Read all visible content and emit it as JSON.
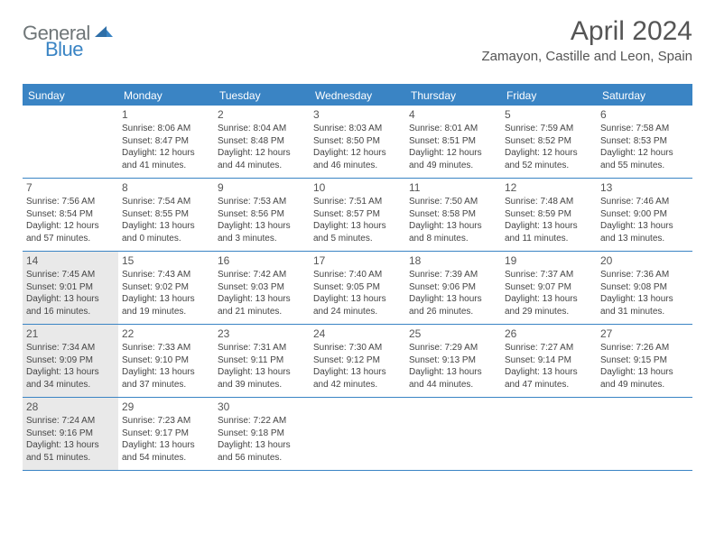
{
  "logo": {
    "gray": "General",
    "blue": "Blue"
  },
  "title": "April 2024",
  "location": "Zamayon, Castille and Leon, Spain",
  "colors": {
    "accent": "#3a84c4",
    "shade": "#e9e9e9",
    "text": "#444444"
  },
  "dayHeaders": [
    "Sunday",
    "Monday",
    "Tuesday",
    "Wednesday",
    "Thursday",
    "Friday",
    "Saturday"
  ],
  "weeks": [
    [
      {
        "num": "",
        "sunrise": "",
        "sunset": "",
        "daylight": "",
        "shaded": false
      },
      {
        "num": "1",
        "sunrise": "Sunrise: 8:06 AM",
        "sunset": "Sunset: 8:47 PM",
        "daylight": "Daylight: 12 hours and 41 minutes.",
        "shaded": false
      },
      {
        "num": "2",
        "sunrise": "Sunrise: 8:04 AM",
        "sunset": "Sunset: 8:48 PM",
        "daylight": "Daylight: 12 hours and 44 minutes.",
        "shaded": false
      },
      {
        "num": "3",
        "sunrise": "Sunrise: 8:03 AM",
        "sunset": "Sunset: 8:50 PM",
        "daylight": "Daylight: 12 hours and 46 minutes.",
        "shaded": false
      },
      {
        "num": "4",
        "sunrise": "Sunrise: 8:01 AM",
        "sunset": "Sunset: 8:51 PM",
        "daylight": "Daylight: 12 hours and 49 minutes.",
        "shaded": false
      },
      {
        "num": "5",
        "sunrise": "Sunrise: 7:59 AM",
        "sunset": "Sunset: 8:52 PM",
        "daylight": "Daylight: 12 hours and 52 minutes.",
        "shaded": false
      },
      {
        "num": "6",
        "sunrise": "Sunrise: 7:58 AM",
        "sunset": "Sunset: 8:53 PM",
        "daylight": "Daylight: 12 hours and 55 minutes.",
        "shaded": false
      }
    ],
    [
      {
        "num": "7",
        "sunrise": "Sunrise: 7:56 AM",
        "sunset": "Sunset: 8:54 PM",
        "daylight": "Daylight: 12 hours and 57 minutes.",
        "shaded": false
      },
      {
        "num": "8",
        "sunrise": "Sunrise: 7:54 AM",
        "sunset": "Sunset: 8:55 PM",
        "daylight": "Daylight: 13 hours and 0 minutes.",
        "shaded": false
      },
      {
        "num": "9",
        "sunrise": "Sunrise: 7:53 AM",
        "sunset": "Sunset: 8:56 PM",
        "daylight": "Daylight: 13 hours and 3 minutes.",
        "shaded": false
      },
      {
        "num": "10",
        "sunrise": "Sunrise: 7:51 AM",
        "sunset": "Sunset: 8:57 PM",
        "daylight": "Daylight: 13 hours and 5 minutes.",
        "shaded": false
      },
      {
        "num": "11",
        "sunrise": "Sunrise: 7:50 AM",
        "sunset": "Sunset: 8:58 PM",
        "daylight": "Daylight: 13 hours and 8 minutes.",
        "shaded": false
      },
      {
        "num": "12",
        "sunrise": "Sunrise: 7:48 AM",
        "sunset": "Sunset: 8:59 PM",
        "daylight": "Daylight: 13 hours and 11 minutes.",
        "shaded": false
      },
      {
        "num": "13",
        "sunrise": "Sunrise: 7:46 AM",
        "sunset": "Sunset: 9:00 PM",
        "daylight": "Daylight: 13 hours and 13 minutes.",
        "shaded": false
      }
    ],
    [
      {
        "num": "14",
        "sunrise": "Sunrise: 7:45 AM",
        "sunset": "Sunset: 9:01 PM",
        "daylight": "Daylight: 13 hours and 16 minutes.",
        "shaded": true
      },
      {
        "num": "15",
        "sunrise": "Sunrise: 7:43 AM",
        "sunset": "Sunset: 9:02 PM",
        "daylight": "Daylight: 13 hours and 19 minutes.",
        "shaded": false
      },
      {
        "num": "16",
        "sunrise": "Sunrise: 7:42 AM",
        "sunset": "Sunset: 9:03 PM",
        "daylight": "Daylight: 13 hours and 21 minutes.",
        "shaded": false
      },
      {
        "num": "17",
        "sunrise": "Sunrise: 7:40 AM",
        "sunset": "Sunset: 9:05 PM",
        "daylight": "Daylight: 13 hours and 24 minutes.",
        "shaded": false
      },
      {
        "num": "18",
        "sunrise": "Sunrise: 7:39 AM",
        "sunset": "Sunset: 9:06 PM",
        "daylight": "Daylight: 13 hours and 26 minutes.",
        "shaded": false
      },
      {
        "num": "19",
        "sunrise": "Sunrise: 7:37 AM",
        "sunset": "Sunset: 9:07 PM",
        "daylight": "Daylight: 13 hours and 29 minutes.",
        "shaded": false
      },
      {
        "num": "20",
        "sunrise": "Sunrise: 7:36 AM",
        "sunset": "Sunset: 9:08 PM",
        "daylight": "Daylight: 13 hours and 31 minutes.",
        "shaded": false
      }
    ],
    [
      {
        "num": "21",
        "sunrise": "Sunrise: 7:34 AM",
        "sunset": "Sunset: 9:09 PM",
        "daylight": "Daylight: 13 hours and 34 minutes.",
        "shaded": true
      },
      {
        "num": "22",
        "sunrise": "Sunrise: 7:33 AM",
        "sunset": "Sunset: 9:10 PM",
        "daylight": "Daylight: 13 hours and 37 minutes.",
        "shaded": false
      },
      {
        "num": "23",
        "sunrise": "Sunrise: 7:31 AM",
        "sunset": "Sunset: 9:11 PM",
        "daylight": "Daylight: 13 hours and 39 minutes.",
        "shaded": false
      },
      {
        "num": "24",
        "sunrise": "Sunrise: 7:30 AM",
        "sunset": "Sunset: 9:12 PM",
        "daylight": "Daylight: 13 hours and 42 minutes.",
        "shaded": false
      },
      {
        "num": "25",
        "sunrise": "Sunrise: 7:29 AM",
        "sunset": "Sunset: 9:13 PM",
        "daylight": "Daylight: 13 hours and 44 minutes.",
        "shaded": false
      },
      {
        "num": "26",
        "sunrise": "Sunrise: 7:27 AM",
        "sunset": "Sunset: 9:14 PM",
        "daylight": "Daylight: 13 hours and 47 minutes.",
        "shaded": false
      },
      {
        "num": "27",
        "sunrise": "Sunrise: 7:26 AM",
        "sunset": "Sunset: 9:15 PM",
        "daylight": "Daylight: 13 hours and 49 minutes.",
        "shaded": false
      }
    ],
    [
      {
        "num": "28",
        "sunrise": "Sunrise: 7:24 AM",
        "sunset": "Sunset: 9:16 PM",
        "daylight": "Daylight: 13 hours and 51 minutes.",
        "shaded": true
      },
      {
        "num": "29",
        "sunrise": "Sunrise: 7:23 AM",
        "sunset": "Sunset: 9:17 PM",
        "daylight": "Daylight: 13 hours and 54 minutes.",
        "shaded": false
      },
      {
        "num": "30",
        "sunrise": "Sunrise: 7:22 AM",
        "sunset": "Sunset: 9:18 PM",
        "daylight": "Daylight: 13 hours and 56 minutes.",
        "shaded": false
      },
      {
        "num": "",
        "sunrise": "",
        "sunset": "",
        "daylight": "",
        "shaded": false
      },
      {
        "num": "",
        "sunrise": "",
        "sunset": "",
        "daylight": "",
        "shaded": false
      },
      {
        "num": "",
        "sunrise": "",
        "sunset": "",
        "daylight": "",
        "shaded": false
      },
      {
        "num": "",
        "sunrise": "",
        "sunset": "",
        "daylight": "",
        "shaded": false
      }
    ]
  ]
}
